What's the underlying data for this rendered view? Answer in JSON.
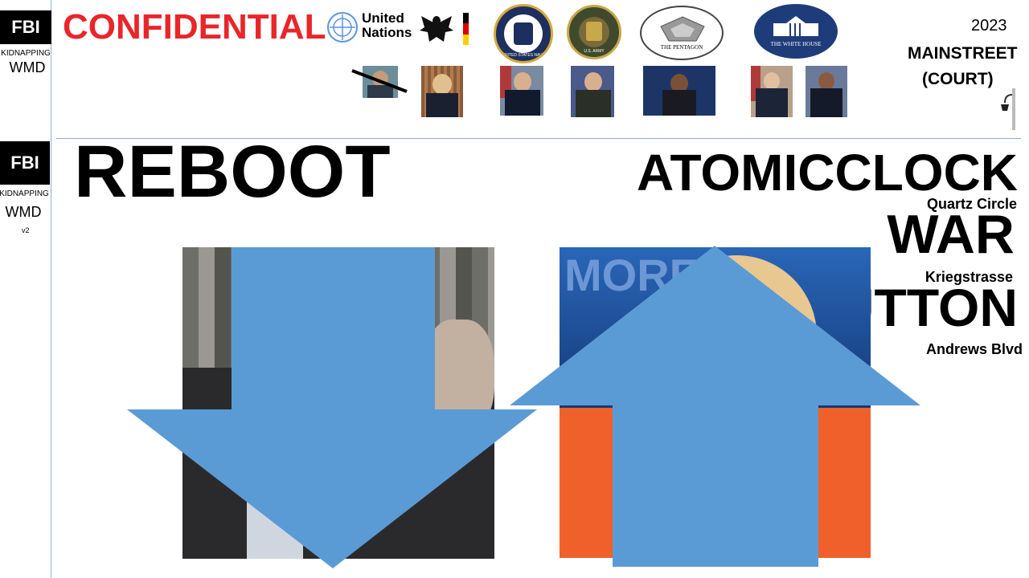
{
  "header": {
    "fbi_label": "FBI",
    "kidnapping_label": "KIDNAPPING",
    "wmd_label": "WMD",
    "confidential_label": "CONFIDENTIAL",
    "un_label_line1": "United",
    "un_label_line2": "Nations",
    "seal_navy_text": "UNITED STATES NAVY",
    "seal_army_text": "U.S. ARMY",
    "seal_pentagon_text": "THE PENTAGON",
    "seal_whitehouse_text": "THE WHITE HOUSE",
    "year_label": "2023",
    "mainstreet_label": "MAINSTREET",
    "court_label": "(COURT)"
  },
  "sidebar": {
    "fbi_label": "FBI",
    "kidnapping_label": "KIDNAPPING",
    "wmd_label": "WMD",
    "version_label": "v2"
  },
  "main": {
    "reboot_label": "REBOOT",
    "atomicclock_label": "ATOMICCLOCK",
    "quartz_label": "Quartz Circle",
    "war_label": "WAR",
    "kriegstrasse_label": "Kriegstrasse",
    "button_label": "BUTTON",
    "andrews_label": "Andrews Blvd",
    "photo_right_text": "MORE"
  },
  "colors": {
    "confidential_red": "#e8262a",
    "arrow_blue": "#5b9bd5",
    "rule_blue": "#8fb0d8",
    "navy_blue": "#1c2f5e",
    "army_green": "#3e4a2b",
    "whitehouse_blue": "#1f3c7a",
    "orange_jacket": "#f0602a"
  }
}
